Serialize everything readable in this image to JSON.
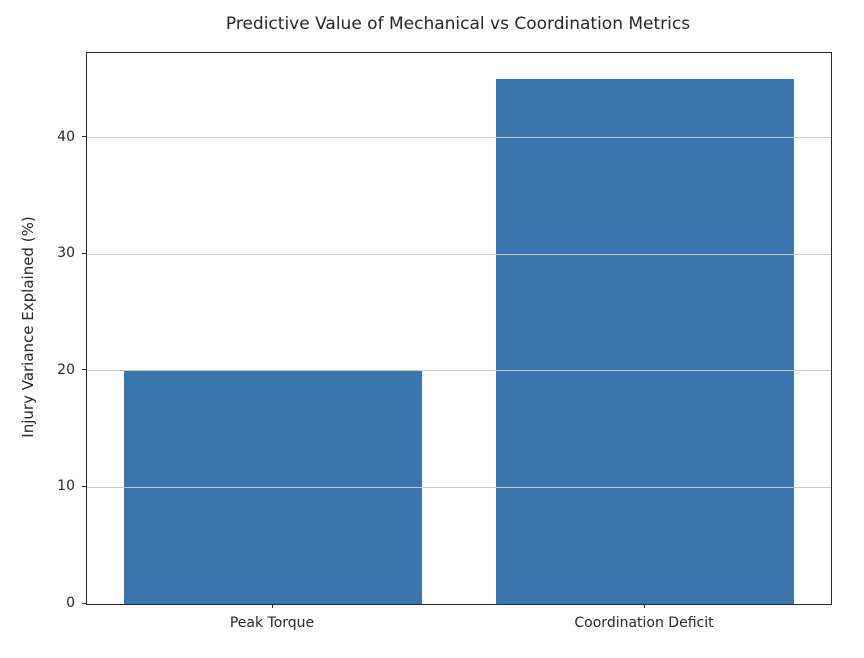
{
  "chart_data": {
    "type": "bar",
    "title": "Predictive Value of Mechanical vs Coordination Metrics",
    "categories": [
      "Peak Torque",
      "Coordination Deficit"
    ],
    "values": [
      20,
      45
    ],
    "xlabel": "",
    "ylabel": "Injury Variance Explained (%)",
    "ylim": [
      0,
      47.25
    ],
    "yticks": [
      0,
      10,
      20,
      30,
      40
    ],
    "grid": true,
    "legend": "none",
    "bar_color": "#3b75af",
    "grid_color": "#c8c8c8",
    "spine_color": "#262626",
    "text_color": "#262626",
    "background_color": "#ffffff"
  }
}
